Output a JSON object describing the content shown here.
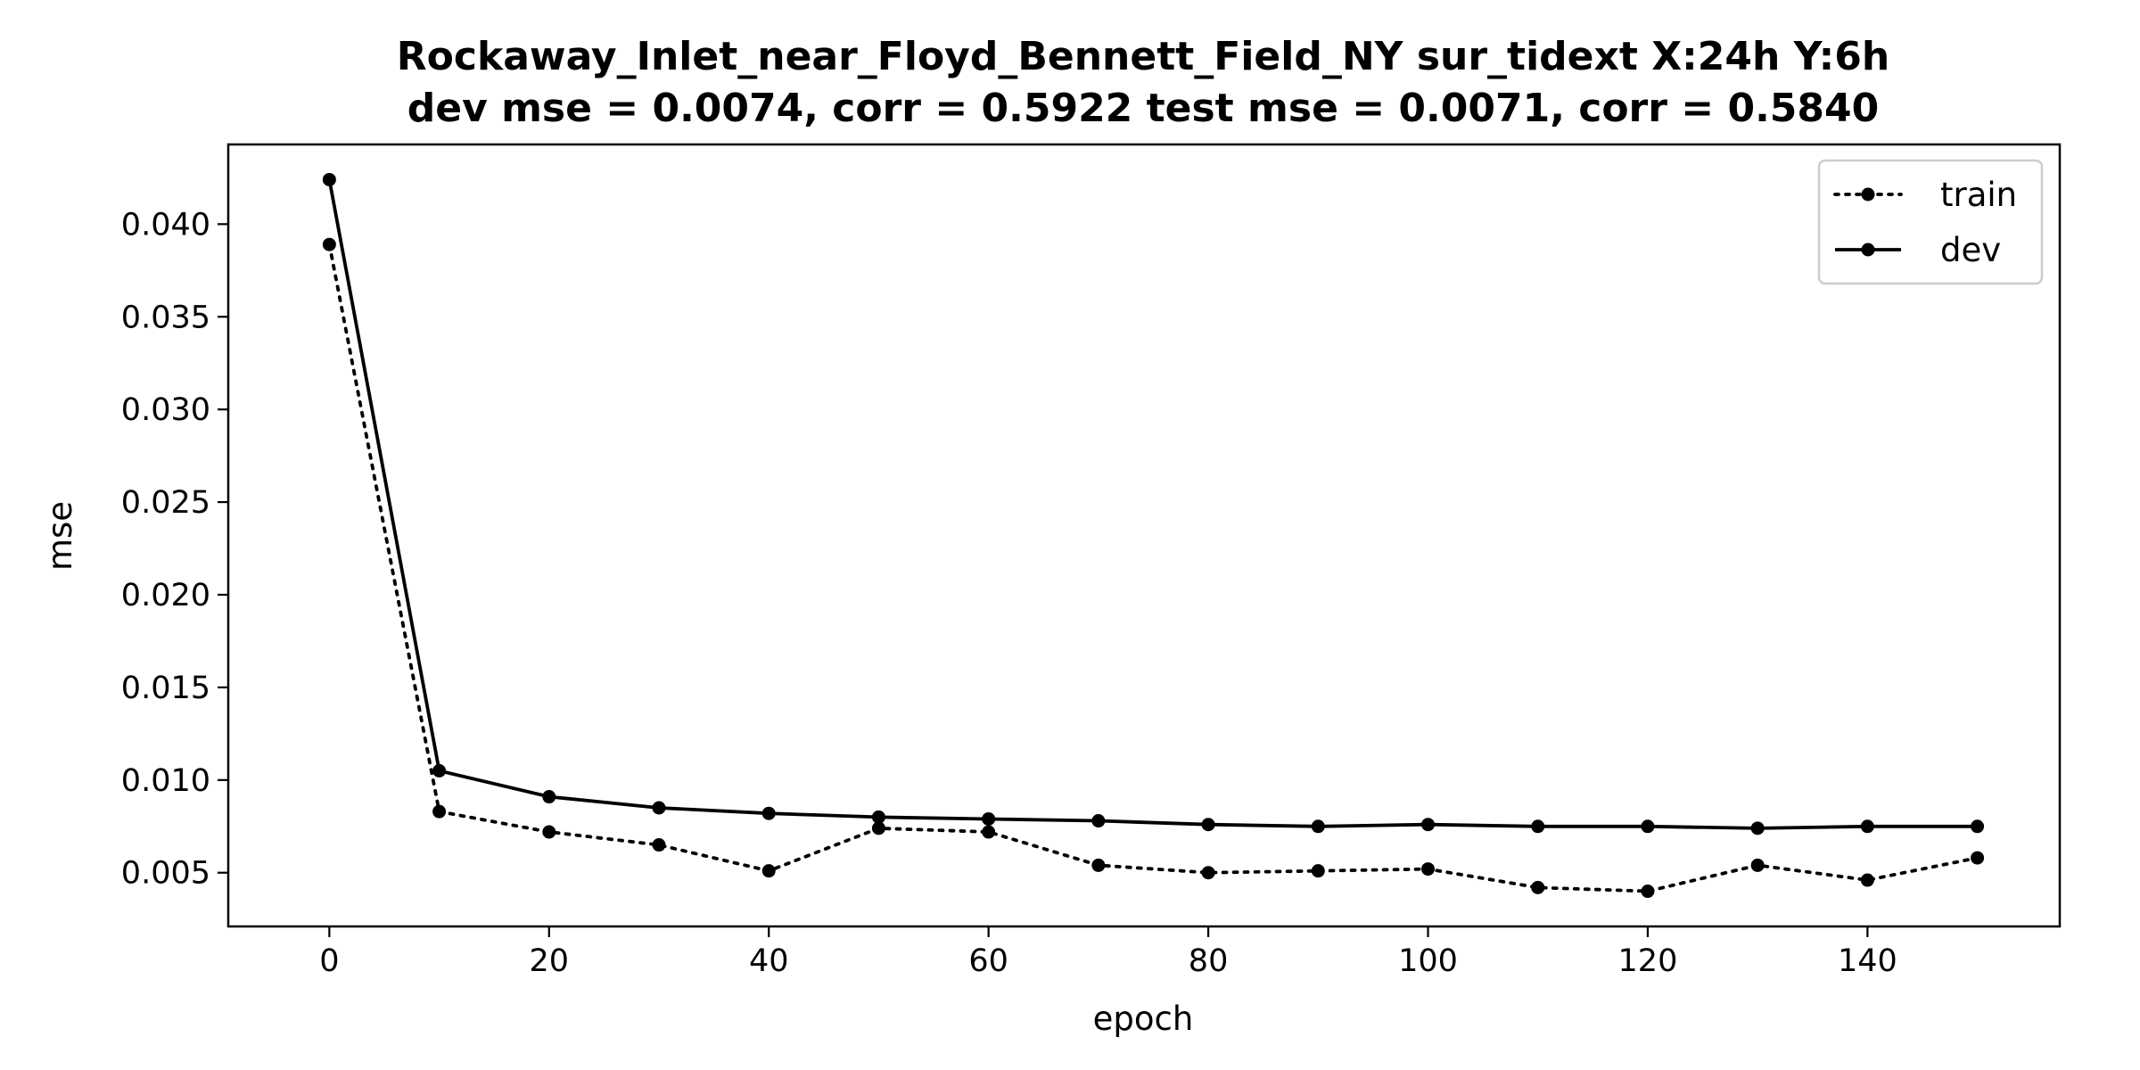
{
  "chart_data": {
    "type": "line",
    "title": "Rockaway_Inlet_near_Floyd_Bennett_Field_NY   sur_tidext   X:24h   Y:6h",
    "subtitle": "dev mse = 0.0074, corr = 0.5922   test mse = 0.0071, corr = 0.5840",
    "xlabel": "epoch",
    "ylabel": "mse",
    "xlim": [
      -9.2,
      157.5
    ],
    "ylim": [
      0.0021,
      0.0443
    ],
    "x_ticks": [
      0,
      20,
      40,
      60,
      80,
      100,
      120,
      140
    ],
    "x_tick_labels": [
      "0",
      "20",
      "40",
      "60",
      "80",
      "100",
      "120",
      "140"
    ],
    "y_ticks": [
      0.005,
      0.01,
      0.015,
      0.02,
      0.025,
      0.03,
      0.035,
      0.04
    ],
    "y_tick_labels": [
      "0.005",
      "0.010",
      "0.015",
      "0.020",
      "0.025",
      "0.030",
      "0.035",
      "0.040"
    ],
    "grid": false,
    "legend_position": "top-right",
    "x": [
      0,
      10,
      20,
      30,
      40,
      50,
      60,
      70,
      80,
      90,
      100,
      110,
      120,
      130,
      140,
      150
    ],
    "series": [
      {
        "name": "train",
        "style": "dotted",
        "color": "#000000",
        "values": [
          0.0389,
          0.0083,
          0.0072,
          0.0065,
          0.0051,
          0.0074,
          0.0072,
          0.0054,
          0.005,
          0.0051,
          0.0052,
          0.0042,
          0.004,
          0.0054,
          0.0046,
          0.0058
        ]
      },
      {
        "name": "dev",
        "style": "solid",
        "color": "#000000",
        "values": [
          0.0424,
          0.0105,
          0.0091,
          0.0085,
          0.0082,
          0.008,
          0.0079,
          0.0078,
          0.0076,
          0.0075,
          0.0076,
          0.0075,
          0.0075,
          0.0074,
          0.0075,
          0.0075
        ]
      }
    ]
  }
}
